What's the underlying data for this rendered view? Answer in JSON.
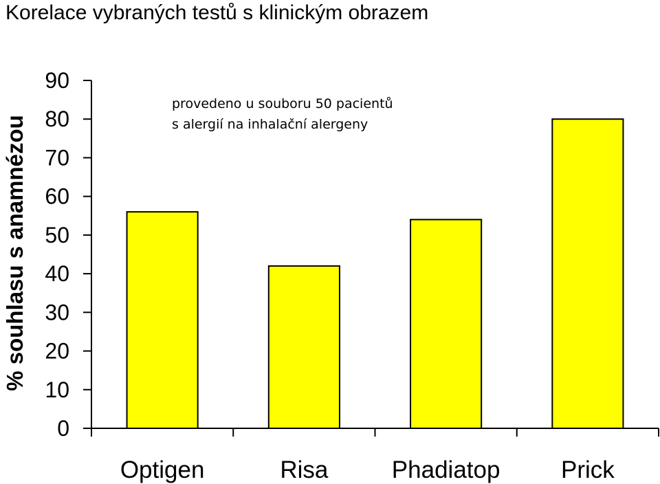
{
  "chart_data": {
    "type": "bar",
    "title": "Korelace vybraných testů s klinickým obrazem",
    "ylabel": "% souhlasu s anamnézou",
    "xlabel": "",
    "annotation": [
      "provedeno u  souboru 50 pacientů",
      "s alergií na inhalační alergeny"
    ],
    "categories": [
      "Optigen",
      "Risa",
      "Phadiatop",
      "Prick"
    ],
    "values": [
      56,
      42,
      54,
      80
    ],
    "ylim": [
      0,
      90
    ],
    "yticks": [
      0,
      10,
      20,
      30,
      40,
      50,
      60,
      70,
      80,
      90
    ],
    "bar_color": "#FFFF00",
    "bar_edge_color": "#000000",
    "grid": false,
    "legend": "none"
  }
}
